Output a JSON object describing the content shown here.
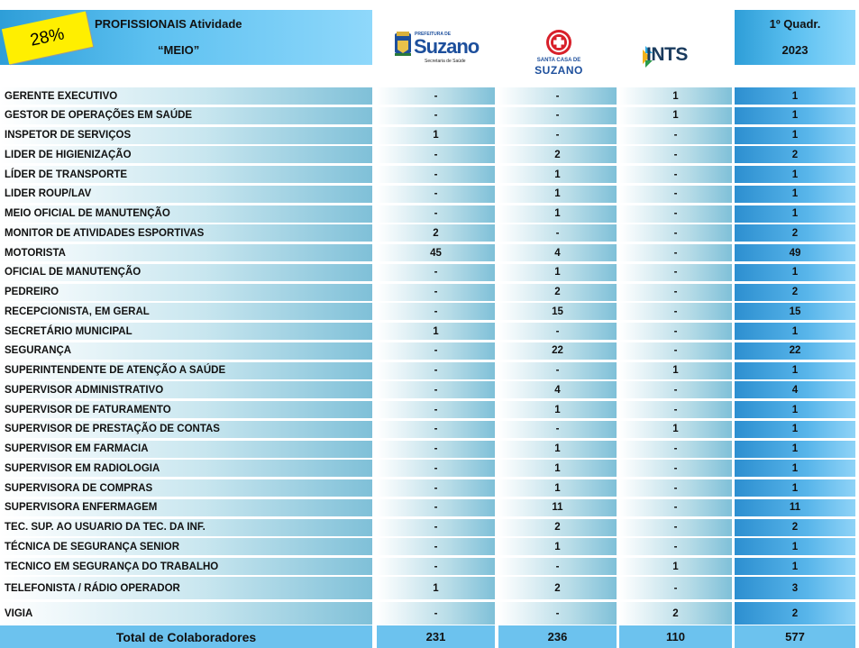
{
  "header": {
    "badge": "28%",
    "title_line1": "PROFISSIONAIS Atividade",
    "title_line2": "“MEIO”",
    "period_line1": "1º Quadr.",
    "period_line2": "2023"
  },
  "logos": {
    "suzano_small": "PREFEITURA DE",
    "suzano_name": "Suzano",
    "suzano_sub": "Secretaria de Saúde",
    "santa_line1": "SANTA CASA DE",
    "santa_line2": "SUZANO",
    "ints_name": "INTS"
  },
  "rows": [
    {
      "name": "GERENTE EXECUTIVO",
      "c1": "-",
      "c2": "-",
      "c3": "1",
      "total": "1"
    },
    {
      "name": "GESTOR DE OPERAÇÕES EM SAÚDE",
      "c1": "-",
      "c2": "-",
      "c3": "1",
      "total": "1"
    },
    {
      "name": "INSPETOR DE SERVIÇOS",
      "c1": "1",
      "c2": "-",
      "c3": "-",
      "total": "1"
    },
    {
      "name": "LIDER DE HIGIENIZAÇÃO",
      "c1": "-",
      "c2": "2",
      "c3": "-",
      "total": "2"
    },
    {
      "name": "LÍDER DE TRANSPORTE",
      "c1": "-",
      "c2": "1",
      "c3": "-",
      "total": "1"
    },
    {
      "name": "LIDER ROUP/LAV",
      "c1": "-",
      "c2": "1",
      "c3": "-",
      "total": "1"
    },
    {
      "name": "MEIO OFICIAL DE MANUTENÇÃO",
      "c1": "-",
      "c2": "1",
      "c3": "-",
      "total": "1"
    },
    {
      "name": "MONITOR DE ATIVIDADES ESPORTIVAS",
      "c1": "2",
      "c2": "-",
      "c3": "-",
      "total": "2"
    },
    {
      "name": "MOTORISTA",
      "c1": "45",
      "c2": "4",
      "c3": "-",
      "total": "49"
    },
    {
      "name": "OFICIAL DE MANUTENÇÃO",
      "c1": "-",
      "c2": "1",
      "c3": "-",
      "total": "1"
    },
    {
      "name": "PEDREIRO",
      "c1": "-",
      "c2": "2",
      "c3": "-",
      "total": "2"
    },
    {
      "name": "RECEPCIONISTA, EM GERAL",
      "c1": "-",
      "c2": "15",
      "c3": "-",
      "total": "15"
    },
    {
      "name": "SECRETÁRIO MUNICIPAL",
      "c1": "1",
      "c2": "-",
      "c3": "-",
      "total": "1"
    },
    {
      "name": "SEGURANÇA",
      "c1": "-",
      "c2": "22",
      "c3": "-",
      "total": "22"
    },
    {
      "name": "SUPERINTENDENTE DE ATENÇÃO A SAÚDE",
      "c1": "-",
      "c2": "-",
      "c3": "1",
      "total": "1"
    },
    {
      "name": "SUPERVISOR ADMINISTRATIVO",
      "c1": "-",
      "c2": "4",
      "c3": "-",
      "total": "4"
    },
    {
      "name": "SUPERVISOR DE FATURAMENTO",
      "c1": "-",
      "c2": "1",
      "c3": "-",
      "total": "1"
    },
    {
      "name": "SUPERVISOR DE PRESTAÇÃO DE CONTAS",
      "c1": "-",
      "c2": "-",
      "c3": "1",
      "total": "1"
    },
    {
      "name": "SUPERVISOR EM FARMACIA",
      "c1": "-",
      "c2": "1",
      "c3": "-",
      "total": "1"
    },
    {
      "name": "SUPERVISOR EM RADIOLOGIA",
      "c1": "-",
      "c2": "1",
      "c3": "-",
      "total": "1"
    },
    {
      "name": "SUPERVISORA DE COMPRAS",
      "c1": "-",
      "c2": "1",
      "c3": "-",
      "total": "1"
    },
    {
      "name": "SUPERVISORA ENFERMAGEM",
      "c1": "-",
      "c2": "11",
      "c3": "-",
      "total": "11"
    },
    {
      "name": "TEC. SUP. AO USUARIO DA TEC. DA INF.",
      "c1": "-",
      "c2": "2",
      "c3": "-",
      "total": "2"
    },
    {
      "name": "TÉCNICA DE SEGURANÇA SENIOR",
      "c1": "-",
      "c2": "1",
      "c3": "-",
      "total": "1"
    },
    {
      "name": "TECNICO EM SEGURANÇA DO TRABALHO",
      "c1": "-",
      "c2": "-",
      "c3": "1",
      "total": "1"
    },
    {
      "name": "TELEFONISTA / RÁDIO OPERADOR",
      "c1": "1",
      "c2": "2",
      "c3": "-",
      "total": "3"
    },
    {
      "name": "VIGIA",
      "c1": "-",
      "c2": "-",
      "c3": "2",
      "total": "2"
    }
  ],
  "total_row": {
    "label": "Total de Colaboradores",
    "c1": "231",
    "c2": "236",
    "c3": "110",
    "total": "577"
  },
  "colors": {
    "header_blue": "#5cc0f0",
    "badge_yellow": "#ffef00",
    "total_blue": "#6cc2ee"
  }
}
